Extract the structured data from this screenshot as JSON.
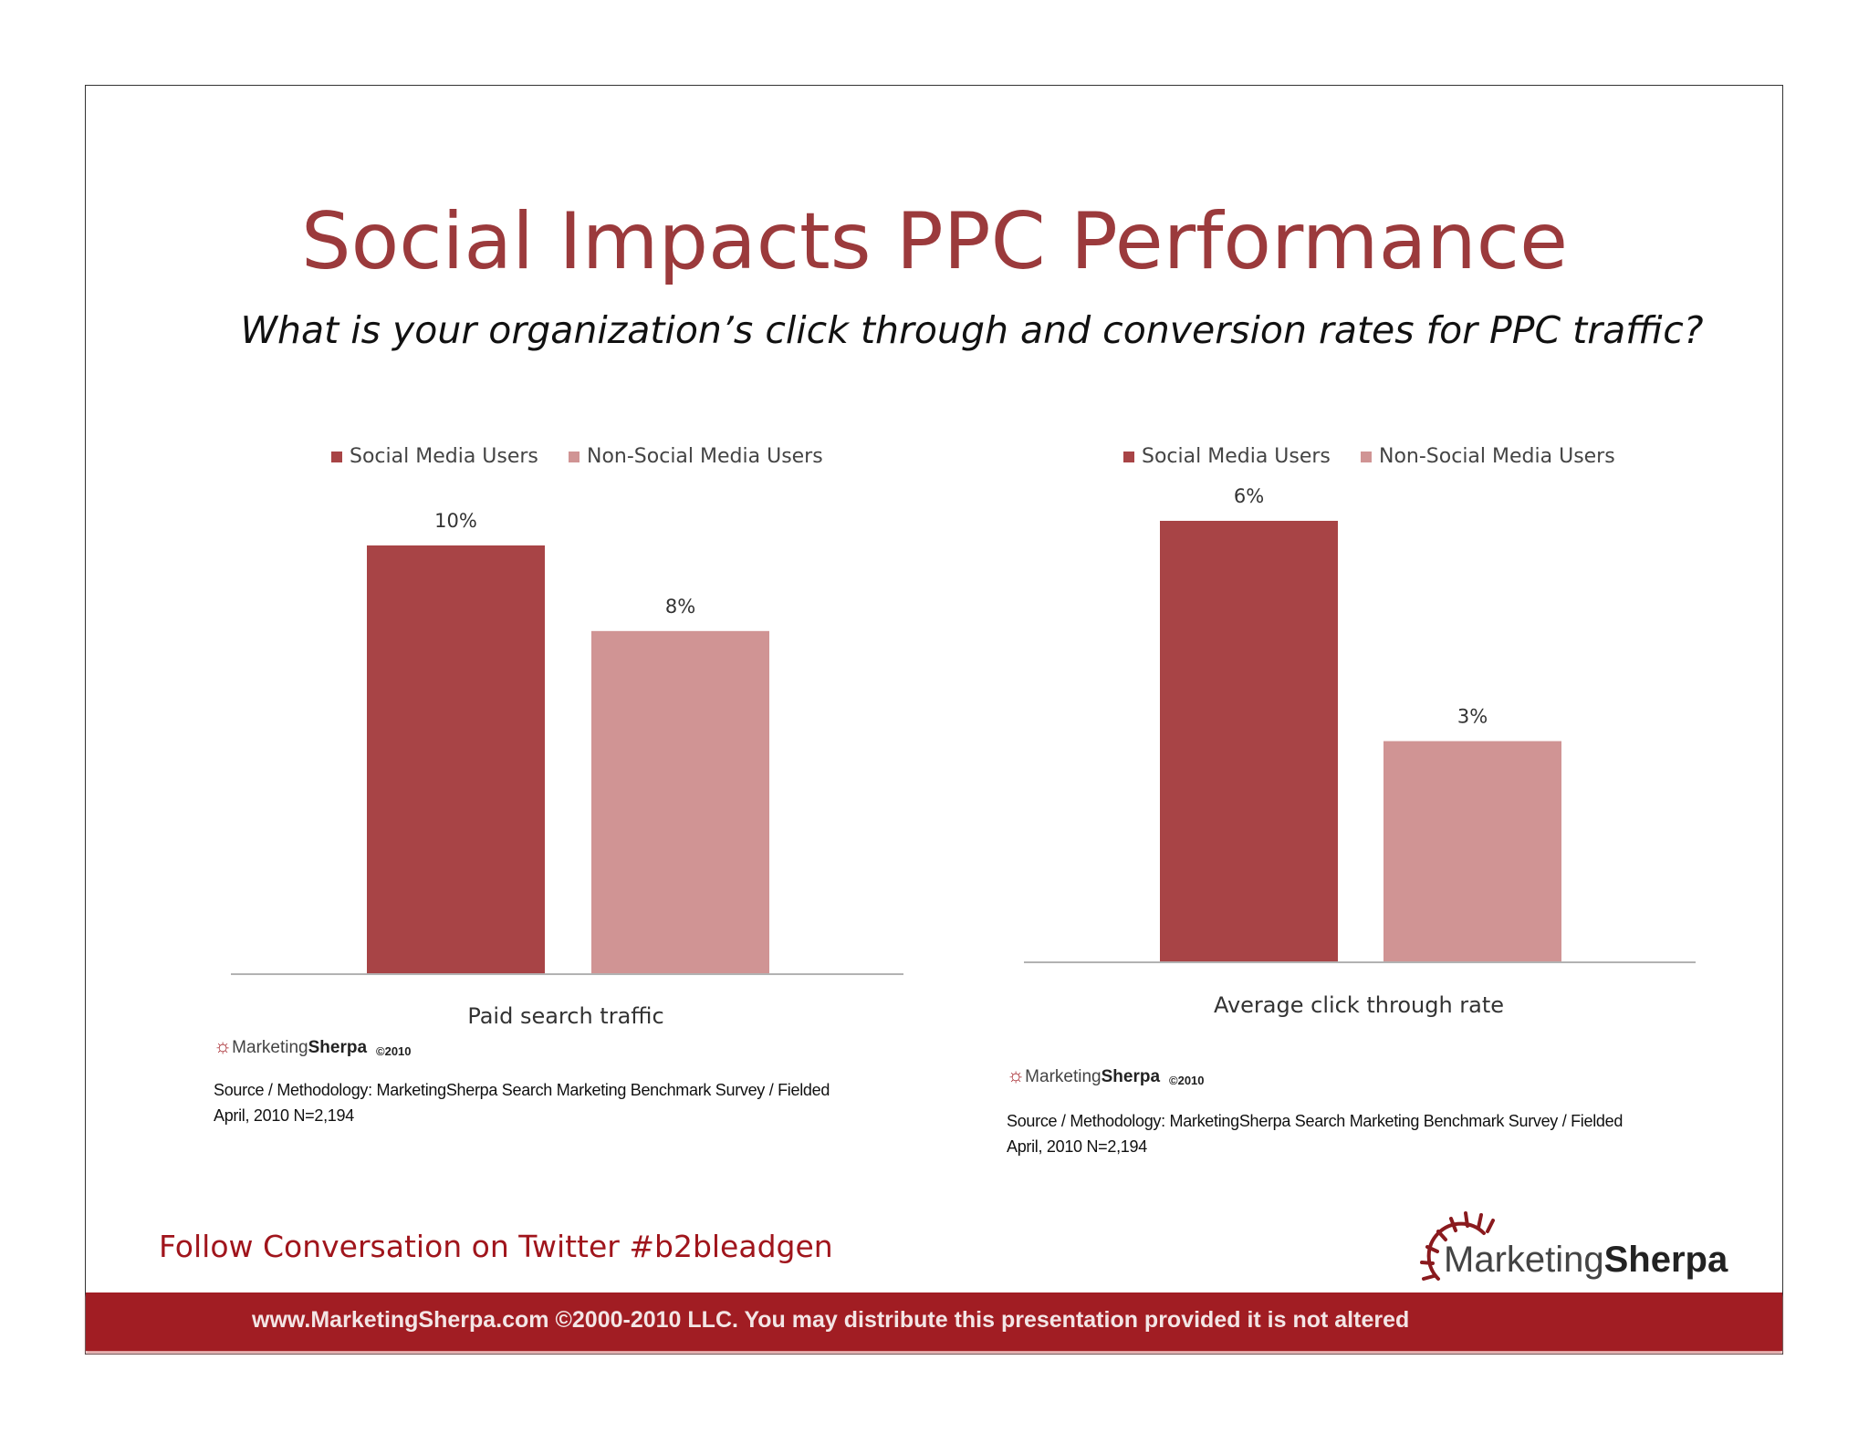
{
  "title": "Social Impacts PPC Performance",
  "subtitle": "What is your organization’s click through and conversion rates for PPC traffic?",
  "colors": {
    "social": "#a84446",
    "non_social": "#d09494",
    "title": "#9b3a3c",
    "band": "#a11d23"
  },
  "chart_data": [
    {
      "type": "bar",
      "categories": [
        "Paid search traffic"
      ],
      "series": [
        {
          "name": "Social Media Users",
          "values": [
            10
          ],
          "label": "10%"
        },
        {
          "name": "Non-Social Media Users",
          "values": [
            8
          ],
          "label": "8%"
        }
      ],
      "legend": "top",
      "grid": false,
      "unit": "%"
    },
    {
      "type": "bar",
      "categories": [
        "Average click through rate"
      ],
      "series": [
        {
          "name": "Social Media Users",
          "values": [
            6
          ],
          "label": "6%"
        },
        {
          "name": "Non-Social Media Users",
          "values": [
            3
          ],
          "label": "3%"
        }
      ],
      "legend": "top",
      "grid": false,
      "unit": "%"
    }
  ],
  "sources": [
    {
      "logo": "MarketingSherpa",
      "copyright": "©2010",
      "line1": "Source / Methodology: MarketingSherpa Search Marketing Benchmark Survey / Fielded",
      "line2": "April, 2010 N=2,194"
    },
    {
      "logo": "MarketingSherpa",
      "copyright": "©2010",
      "line1": "Source / Methodology: MarketingSherpa Search Marketing Benchmark Survey / Fielded",
      "line2": "April, 2010 N=2,194"
    }
  ],
  "twitter": "Follow Conversation on Twitter #b2bleadgen",
  "brand_logo": "MarketingSherpa",
  "footer": "www.MarketingSherpa.com ©2000-2010 LLC. You may distribute this presentation provided it is not altered"
}
